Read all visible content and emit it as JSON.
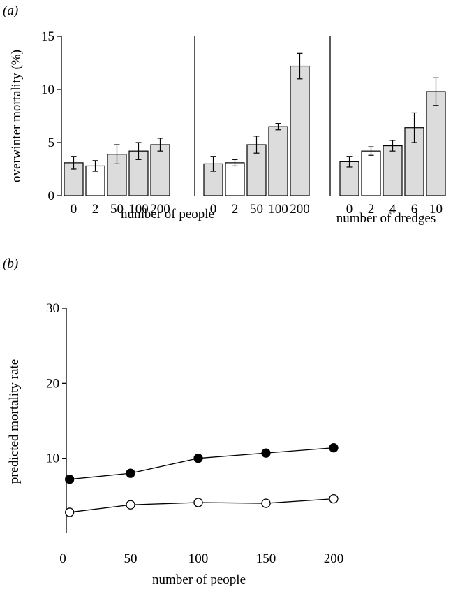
{
  "panel_labels": {
    "a": "(a)",
    "b": "(b)"
  },
  "chart_data": [
    {
      "type": "bar",
      "panel": "(a)",
      "ylabel": "overwinter mortality (%)",
      "xlabel": "number of people",
      "ylim": [
        0,
        15
      ],
      "yticks": [
        0,
        5,
        10,
        15
      ],
      "categories": [
        "0",
        "2",
        "50",
        "100",
        "200"
      ],
      "values": [
        3.1,
        2.8,
        3.9,
        4.2,
        4.8
      ],
      "errors": [
        0.6,
        0.5,
        0.9,
        0.8,
        0.6
      ],
      "fills": [
        "#dcdcdc",
        "#ffffff",
        "#dcdcdc",
        "#dcdcdc",
        "#dcdcdc"
      ],
      "grid": false
    },
    {
      "type": "bar",
      "panel": "(a)",
      "ylabel": "",
      "xlabel": "number of people",
      "ylim": [
        0,
        15
      ],
      "yticks": [],
      "categories": [
        "0",
        "2",
        "50",
        "100",
        "200"
      ],
      "values": [
        3.0,
        3.1,
        4.8,
        6.5,
        12.2
      ],
      "errors": [
        0.7,
        0.3,
        0.8,
        0.3,
        1.2
      ],
      "fills": [
        "#dcdcdc",
        "#ffffff",
        "#dcdcdc",
        "#dcdcdc",
        "#dcdcdc"
      ],
      "grid": false
    },
    {
      "type": "bar",
      "panel": "(a)",
      "ylabel": "",
      "xlabel": "number of dredges",
      "ylim": [
        0,
        15
      ],
      "yticks": [],
      "categories": [
        "0",
        "2",
        "4",
        "6",
        "10"
      ],
      "values": [
        3.2,
        4.2,
        4.7,
        6.4,
        9.8
      ],
      "errors": [
        0.5,
        0.4,
        0.5,
        1.4,
        1.3
      ],
      "fills": [
        "#dcdcdc",
        "#ffffff",
        "#dcdcdc",
        "#dcdcdc",
        "#dcdcdc"
      ],
      "grid": false
    },
    {
      "type": "line",
      "panel": "(b)",
      "xlabel": "number of people",
      "ylabel": "predicted mortality rate",
      "xlim": [
        0,
        200
      ],
      "ylim": [
        0,
        30
      ],
      "xticks": [
        0,
        50,
        100,
        150,
        200
      ],
      "yticks": [
        10,
        20,
        30
      ],
      "grid": false,
      "series": [
        {
          "marker": "filled",
          "x": [
            5,
            50,
            100,
            150,
            200
          ],
          "y": [
            7.2,
            8.0,
            10.0,
            10.7,
            11.4
          ]
        },
        {
          "marker": "open",
          "x": [
            5,
            50,
            100,
            150,
            200
          ],
          "y": [
            2.8,
            3.8,
            4.1,
            4.0,
            4.6
          ]
        }
      ]
    }
  ]
}
